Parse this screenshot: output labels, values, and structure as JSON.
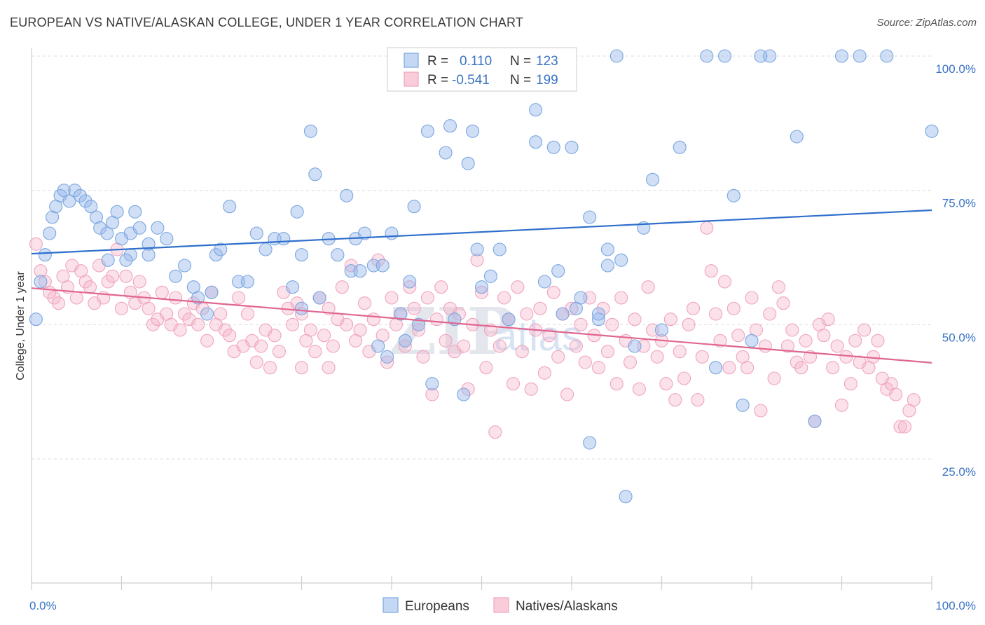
{
  "title": "EUROPEAN VS NATIVE/ALASKAN COLLEGE, UNDER 1 YEAR CORRELATION CHART",
  "source": "Source: ZipAtlas.com",
  "watermark": {
    "zip": "ZIP",
    "atlas": "atlas"
  },
  "chart_data": {
    "type": "scatter",
    "title": "EUROPEAN VS NATIVE/ALASKAN COLLEGE, UNDER 1 YEAR CORRELATION CHART",
    "xlabel": "",
    "ylabel": "College, Under 1 year",
    "xlim": [
      0,
      100
    ],
    "ylim": [
      0,
      103
    ],
    "x_tick_labels": [
      "0.0%",
      "100.0%"
    ],
    "y_ticks": [
      25,
      50,
      75,
      100
    ],
    "y_tick_labels": [
      "25.0%",
      "50.0%",
      "75.0%",
      "100.0%"
    ],
    "grid": true,
    "legend_position": "top-center",
    "series": [
      {
        "name": "Europeans",
        "color": "#7aa6e0",
        "line_color": "#2f6fcc",
        "R": "0.110",
        "N": "123",
        "trend": [
          [
            0,
            63.2
          ],
          [
            100,
            71.3
          ]
        ],
        "points": [
          [
            0.5,
            51
          ],
          [
            1,
            58
          ],
          [
            1.5,
            63
          ],
          [
            2,
            67
          ],
          [
            2.3,
            70
          ],
          [
            2.7,
            72
          ],
          [
            3.2,
            74
          ],
          [
            3.6,
            75
          ],
          [
            4.2,
            73
          ],
          [
            4.8,
            75
          ],
          [
            5.4,
            74
          ],
          [
            6,
            73
          ],
          [
            6.6,
            72
          ],
          [
            7.2,
            70
          ],
          [
            7.6,
            68
          ],
          [
            8.4,
            67
          ],
          [
            9,
            69
          ],
          [
            9.5,
            71
          ],
          [
            10,
            66
          ],
          [
            11,
            67
          ],
          [
            11.5,
            71
          ],
          [
            12,
            68
          ],
          [
            13,
            65
          ],
          [
            14,
            68
          ],
          [
            15,
            66
          ],
          [
            8.5,
            62
          ],
          [
            11,
            63
          ],
          [
            13,
            63
          ],
          [
            16,
            59
          ],
          [
            17,
            61
          ],
          [
            18,
            57
          ],
          [
            18.5,
            55
          ],
          [
            19.5,
            52
          ],
          [
            20,
            56
          ],
          [
            20.5,
            63
          ],
          [
            21,
            64
          ],
          [
            22,
            72
          ],
          [
            23,
            58
          ],
          [
            24,
            58
          ],
          [
            25,
            67
          ],
          [
            26,
            64
          ],
          [
            27,
            66
          ],
          [
            28,
            66
          ],
          [
            29,
            57
          ],
          [
            30,
            63
          ],
          [
            31,
            86
          ],
          [
            31.5,
            78
          ],
          [
            32,
            55
          ],
          [
            33,
            66
          ],
          [
            34,
            63
          ],
          [
            35,
            74
          ],
          [
            35.5,
            60
          ],
          [
            36,
            66
          ],
          [
            36.5,
            60
          ],
          [
            37,
            67
          ],
          [
            38,
            61
          ],
          [
            38.5,
            46
          ],
          [
            39,
            61
          ],
          [
            39.5,
            44
          ],
          [
            40,
            67
          ],
          [
            41,
            52
          ],
          [
            41.5,
            47
          ],
          [
            42,
            58
          ],
          [
            42.5,
            72
          ],
          [
            43,
            50
          ],
          [
            44,
            86
          ],
          [
            44.5,
            39
          ],
          [
            45,
            100
          ],
          [
            45.5,
            100
          ],
          [
            46,
            82
          ],
          [
            46.5,
            87
          ],
          [
            47,
            51
          ],
          [
            48,
            37
          ],
          [
            48.5,
            80
          ],
          [
            49,
            100
          ],
          [
            49.5,
            64
          ],
          [
            50,
            57
          ],
          [
            51,
            59
          ],
          [
            52,
            64
          ],
          [
            52.5,
            100
          ],
          [
            53,
            51
          ],
          [
            54,
            100
          ],
          [
            56,
            90
          ],
          [
            56,
            84
          ],
          [
            57,
            58
          ],
          [
            58,
            83
          ],
          [
            58.5,
            60
          ],
          [
            59,
            52
          ],
          [
            60,
            83
          ],
          [
            60.5,
            53
          ],
          [
            61,
            55
          ],
          [
            62,
            28
          ],
          [
            62,
            70
          ],
          [
            63,
            51
          ],
          [
            64,
            64
          ],
          [
            65,
            100
          ],
          [
            65.5,
            62
          ],
          [
            66,
            18
          ],
          [
            67,
            46
          ],
          [
            68,
            68
          ],
          [
            69,
            77
          ],
          [
            70,
            49
          ],
          [
            72,
            83
          ],
          [
            75,
            100
          ],
          [
            76,
            42
          ],
          [
            77,
            100
          ],
          [
            78,
            74
          ],
          [
            79,
            35
          ],
          [
            80,
            47
          ],
          [
            81,
            100
          ],
          [
            82,
            100
          ],
          [
            85,
            85
          ],
          [
            87,
            32
          ],
          [
            90,
            100
          ],
          [
            92,
            100
          ],
          [
            95,
            100
          ],
          [
            100,
            86
          ],
          [
            10.5,
            62
          ],
          [
            56,
            100
          ],
          [
            49,
            86
          ],
          [
            29.5,
            71
          ],
          [
            63,
            52
          ],
          [
            64,
            61
          ],
          [
            30,
            53
          ]
        ]
      },
      {
        "name": "Natives/Alaskans",
        "color": "#f0a4bf",
        "line_color": "#e0668f",
        "R": "-0.541",
        "N": "199",
        "trend": [
          [
            0,
            56.8
          ],
          [
            100,
            42.9
          ]
        ],
        "points": [
          [
            0.5,
            65
          ],
          [
            1,
            60
          ],
          [
            1.5,
            58
          ],
          [
            2,
            56
          ],
          [
            2.5,
            55
          ],
          [
            3,
            54
          ],
          [
            3.5,
            59
          ],
          [
            4,
            57
          ],
          [
            4.5,
            61
          ],
          [
            5,
            55
          ],
          [
            5.5,
            60
          ],
          [
            6,
            58
          ],
          [
            6.5,
            57
          ],
          [
            7,
            54
          ],
          [
            7.5,
            61
          ],
          [
            8,
            55
          ],
          [
            8.5,
            58
          ],
          [
            9,
            59
          ],
          [
            9.5,
            64
          ],
          [
            10,
            53
          ],
          [
            10.5,
            59
          ],
          [
            11,
            56
          ],
          [
            11.5,
            54
          ],
          [
            12,
            58
          ],
          [
            12.5,
            55
          ],
          [
            13,
            53
          ],
          [
            13.5,
            50
          ],
          [
            14,
            51
          ],
          [
            14.5,
            56
          ],
          [
            15,
            52
          ],
          [
            15.5,
            50
          ],
          [
            16,
            55
          ],
          [
            16.5,
            49
          ],
          [
            17,
            52
          ],
          [
            17.5,
            51
          ],
          [
            18,
            54
          ],
          [
            18.5,
            50
          ],
          [
            19,
            53
          ],
          [
            19.5,
            47
          ],
          [
            20,
            56
          ],
          [
            20.5,
            50
          ],
          [
            21,
            52
          ],
          [
            21.5,
            49
          ],
          [
            22,
            48
          ],
          [
            22.5,
            45
          ],
          [
            23,
            55
          ],
          [
            23.5,
            46
          ],
          [
            24,
            52
          ],
          [
            24.5,
            47
          ],
          [
            25,
            43
          ],
          [
            25.5,
            46
          ],
          [
            26,
            49
          ],
          [
            26.5,
            42
          ],
          [
            27,
            48
          ],
          [
            27.5,
            45
          ],
          [
            28,
            56
          ],
          [
            28.5,
            53
          ],
          [
            29,
            50
          ],
          [
            29.5,
            54
          ],
          [
            30,
            52
          ],
          [
            30.5,
            47
          ],
          [
            31,
            49
          ],
          [
            31.5,
            45
          ],
          [
            32,
            55
          ],
          [
            32.5,
            48
          ],
          [
            33,
            53
          ],
          [
            33.5,
            46
          ],
          [
            34,
            51
          ],
          [
            34.5,
            57
          ],
          [
            35,
            50
          ],
          [
            35.5,
            61
          ],
          [
            36,
            47
          ],
          [
            36.5,
            49
          ],
          [
            37,
            54
          ],
          [
            37.5,
            45
          ],
          [
            38,
            51
          ],
          [
            38.5,
            62
          ],
          [
            39,
            48
          ],
          [
            39.5,
            43
          ],
          [
            40,
            55
          ],
          [
            40.5,
            50
          ],
          [
            41,
            52
          ],
          [
            41.5,
            46
          ],
          [
            42,
            57
          ],
          [
            42.5,
            53
          ],
          [
            43,
            49
          ],
          [
            43.5,
            44
          ],
          [
            44,
            55
          ],
          [
            44.5,
            37
          ],
          [
            45,
            51
          ],
          [
            45.5,
            57
          ],
          [
            46,
            47
          ],
          [
            46.5,
            53
          ],
          [
            47,
            45
          ],
          [
            47.5,
            52
          ],
          [
            48,
            46
          ],
          [
            48.5,
            38
          ],
          [
            49,
            50
          ],
          [
            49.5,
            62
          ],
          [
            50,
            56
          ],
          [
            50.5,
            42
          ],
          [
            51,
            49
          ],
          [
            51.5,
            30
          ],
          [
            52,
            46
          ],
          [
            52.5,
            55
          ],
          [
            53,
            51
          ],
          [
            53.5,
            39
          ],
          [
            54,
            57
          ],
          [
            54.5,
            45
          ],
          [
            55,
            52
          ],
          [
            55.5,
            38
          ],
          [
            56,
            49
          ],
          [
            56.5,
            53
          ],
          [
            57,
            41
          ],
          [
            57.5,
            48
          ],
          [
            58,
            56
          ],
          [
            58.5,
            44
          ],
          [
            59,
            52
          ],
          [
            59.5,
            37
          ],
          [
            60,
            53
          ],
          [
            60.5,
            46
          ],
          [
            61,
            50
          ],
          [
            61.5,
            43
          ],
          [
            62,
            55
          ],
          [
            62.5,
            48
          ],
          [
            63,
            42
          ],
          [
            63.5,
            53
          ],
          [
            64,
            45
          ],
          [
            64.5,
            50
          ],
          [
            65,
            39
          ],
          [
            65.5,
            55
          ],
          [
            66,
            47
          ],
          [
            66.5,
            43
          ],
          [
            67,
            51
          ],
          [
            67.5,
            38
          ],
          [
            68,
            46
          ],
          [
            68.5,
            57
          ],
          [
            69,
            49
          ],
          [
            69.5,
            44
          ],
          [
            70,
            47
          ],
          [
            70.5,
            39
          ],
          [
            71,
            51
          ],
          [
            71.5,
            36
          ],
          [
            72,
            45
          ],
          [
            72.5,
            40
          ],
          [
            73,
            50
          ],
          [
            73.5,
            53
          ],
          [
            74,
            36
          ],
          [
            74.5,
            44
          ],
          [
            75,
            68
          ],
          [
            75.5,
            60
          ],
          [
            76,
            52
          ],
          [
            76.5,
            47
          ],
          [
            77,
            58
          ],
          [
            77.5,
            42
          ],
          [
            78,
            53
          ],
          [
            78.5,
            48
          ],
          [
            79,
            44
          ],
          [
            79.5,
            42
          ],
          [
            80,
            55
          ],
          [
            80.5,
            49
          ],
          [
            81,
            34
          ],
          [
            81.5,
            46
          ],
          [
            82,
            52
          ],
          [
            82.5,
            40
          ],
          [
            83,
            57
          ],
          [
            83.5,
            54
          ],
          [
            84,
            46
          ],
          [
            84.5,
            49
          ],
          [
            85,
            43
          ],
          [
            85.5,
            42
          ],
          [
            86,
            47
          ],
          [
            86.5,
            44
          ],
          [
            87,
            32
          ],
          [
            87.5,
            50
          ],
          [
            88,
            48
          ],
          [
            88.5,
            51
          ],
          [
            89,
            42
          ],
          [
            89.5,
            46
          ],
          [
            90,
            35
          ],
          [
            90.5,
            44
          ],
          [
            91,
            39
          ],
          [
            91.5,
            47
          ],
          [
            92,
            43
          ],
          [
            92.5,
            49
          ],
          [
            93,
            42
          ],
          [
            93.5,
            44
          ],
          [
            94,
            47
          ],
          [
            94.5,
            40
          ],
          [
            95,
            38
          ],
          [
            95.5,
            39
          ],
          [
            96,
            37
          ],
          [
            96.5,
            31
          ],
          [
            97,
            31
          ],
          [
            97.5,
            34
          ],
          [
            98,
            36
          ],
          [
            30,
            42
          ],
          [
            33,
            42
          ]
        ]
      }
    ]
  },
  "legend": {
    "r_label": "R =",
    "n_label": "N ="
  }
}
